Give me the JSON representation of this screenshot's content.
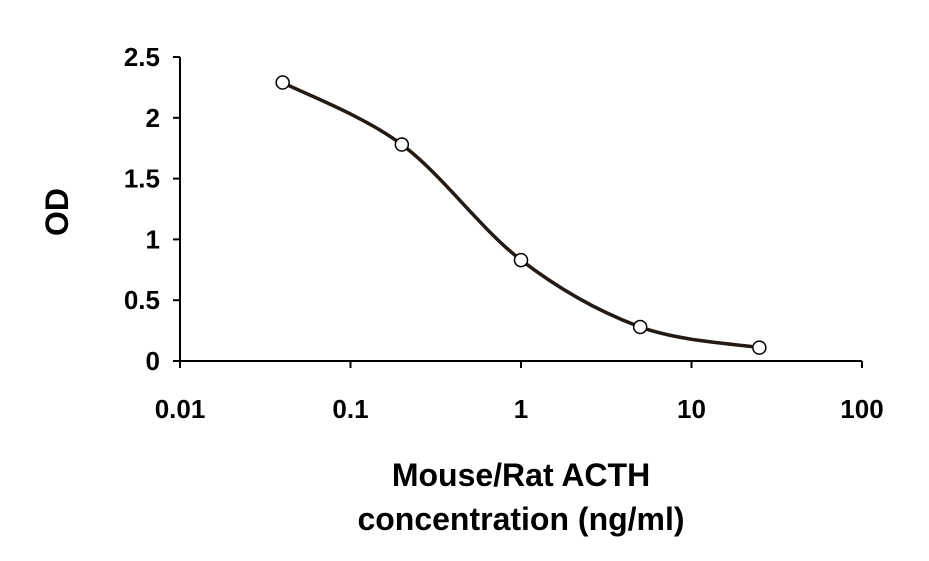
{
  "chart_data": {
    "type": "scatter",
    "title": "",
    "xlabel_lines": [
      "Mouse/Rat ACTH",
      "concentration (ng/ml)"
    ],
    "ylabel": "OD",
    "x_scale": "log",
    "xlim": [
      0.01,
      100
    ],
    "ylim": [
      0,
      2.5
    ],
    "x_ticks": [
      0.01,
      0.1,
      1,
      10,
      100
    ],
    "x_tick_labels": [
      "0.01",
      "0.1",
      "1",
      "10",
      "100"
    ],
    "y_ticks": [
      0,
      0.5,
      1,
      1.5,
      2,
      2.5
    ],
    "y_tick_labels": [
      "0",
      "0.5",
      "1",
      "1.5",
      "2",
      "2.5"
    ],
    "grid": false,
    "legend": "none",
    "smooth_line": true,
    "line_color": "#231a14",
    "marker_fill": "#ffffff",
    "marker_stroke": "#000000",
    "series": [
      {
        "x": [
          0.04,
          0.2,
          1,
          5,
          25
        ],
        "y": [
          2.29,
          1.78,
          0.83,
          0.28,
          0.11
        ]
      }
    ]
  }
}
